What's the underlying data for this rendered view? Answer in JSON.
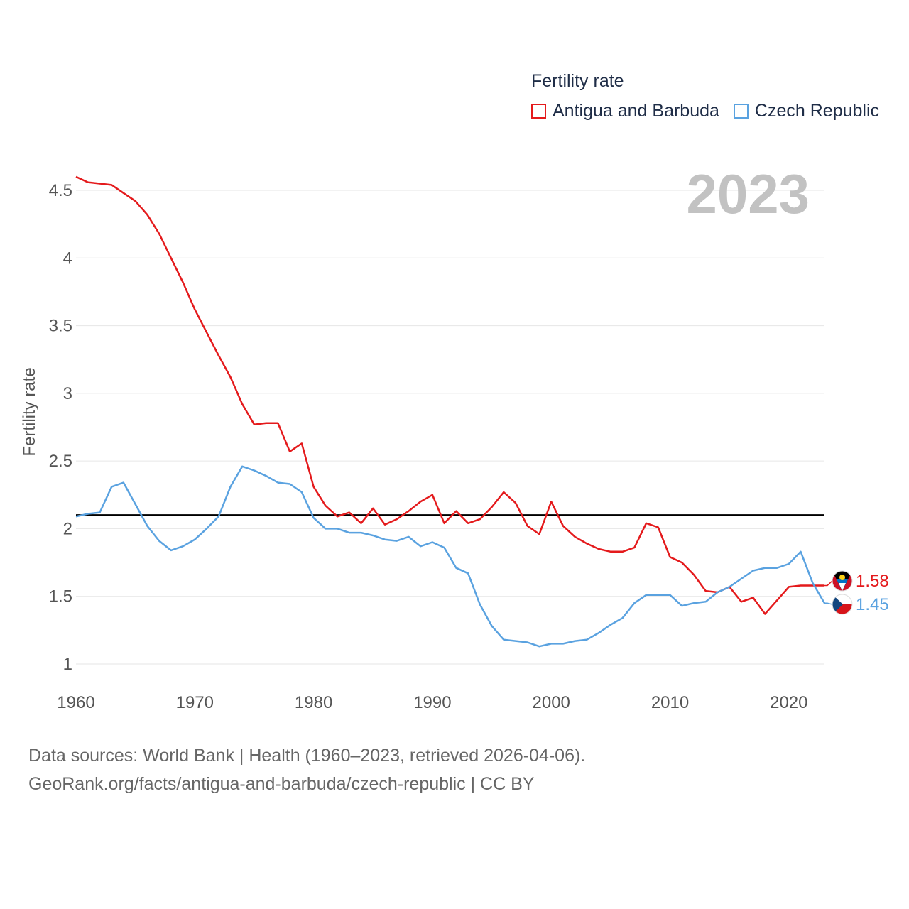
{
  "legend": {
    "title": "Fertility rate",
    "items": [
      {
        "label": "Antigua and Barbuda",
        "color": "#e41a1c"
      },
      {
        "label": "Czech Republic",
        "color": "#5aa2e0"
      }
    ]
  },
  "year_label": "2023",
  "source": {
    "line1": "Data sources: World Bank | Health (1960–2023, retrieved 2026-04-06).",
    "line2": "GeoRank.org/facts/antigua-and-barbuda/czech-republic | CC BY"
  },
  "chart_data": {
    "type": "line",
    "title": "",
    "xlabel": "",
    "ylabel": "Fertility rate",
    "xlim": [
      1960,
      2023
    ],
    "ylim": [
      1,
      4.6
    ],
    "x_ticks": [
      1960,
      1970,
      1980,
      1990,
      2000,
      2010,
      2020
    ],
    "y_ticks": [
      1,
      1.5,
      2,
      2.5,
      3,
      3.5,
      4,
      4.5
    ],
    "y_tick_labels": [
      "1",
      "1.5",
      "2",
      "2.5",
      "3",
      "3.5",
      "4",
      "4.5"
    ],
    "reference_line": {
      "y": 2.1,
      "color": "#000000"
    },
    "grid": true,
    "x": [
      1960,
      1961,
      1962,
      1963,
      1964,
      1965,
      1966,
      1967,
      1968,
      1969,
      1970,
      1971,
      1972,
      1973,
      1974,
      1975,
      1976,
      1977,
      1978,
      1979,
      1980,
      1981,
      1982,
      1983,
      1984,
      1985,
      1986,
      1987,
      1988,
      1989,
      1990,
      1991,
      1992,
      1993,
      1994,
      1995,
      1996,
      1997,
      1998,
      1999,
      2000,
      2001,
      2002,
      2003,
      2004,
      2005,
      2006,
      2007,
      2008,
      2009,
      2010,
      2011,
      2012,
      2013,
      2014,
      2015,
      2016,
      2017,
      2018,
      2019,
      2020,
      2021,
      2022,
      2023
    ],
    "series": [
      {
        "name": "Antigua and Barbuda",
        "color": "#e41a1c",
        "end_label": "1.58",
        "values": [
          4.6,
          4.56,
          4.55,
          4.54,
          4.48,
          4.42,
          4.32,
          4.18,
          4.0,
          3.82,
          3.62,
          3.45,
          3.28,
          3.12,
          2.92,
          2.77,
          2.78,
          2.78,
          2.57,
          2.63,
          2.31,
          2.17,
          2.09,
          2.12,
          2.04,
          2.15,
          2.03,
          2.07,
          2.13,
          2.2,
          2.25,
          2.04,
          2.13,
          2.04,
          2.07,
          2.16,
          2.27,
          2.19,
          2.02,
          1.96,
          2.2,
          2.02,
          1.94,
          1.89,
          1.85,
          1.83,
          1.83,
          1.86,
          2.04,
          2.01,
          1.79,
          1.75,
          1.66,
          1.54,
          1.53,
          1.57,
          1.46,
          1.49,
          1.37,
          1.47,
          1.57,
          1.58,
          1.58,
          1.58
        ]
      },
      {
        "name": "Czech Republic",
        "color": "#5aa2e0",
        "end_label": "1.45",
        "values": [
          2.09,
          2.11,
          2.12,
          2.31,
          2.34,
          2.18,
          2.02,
          1.91,
          1.84,
          1.87,
          1.92,
          2.0,
          2.09,
          2.31,
          2.46,
          2.43,
          2.39,
          2.34,
          2.33,
          2.27,
          2.08,
          2.0,
          2.0,
          1.97,
          1.97,
          1.95,
          1.92,
          1.91,
          1.94,
          1.87,
          1.9,
          1.86,
          1.71,
          1.67,
          1.44,
          1.28,
          1.18,
          1.17,
          1.16,
          1.13,
          1.15,
          1.15,
          1.17,
          1.18,
          1.23,
          1.29,
          1.34,
          1.45,
          1.51,
          1.51,
          1.51,
          1.43,
          1.45,
          1.46,
          1.53,
          1.57,
          1.63,
          1.69,
          1.71,
          1.71,
          1.74,
          1.83,
          1.6,
          1.45
        ]
      }
    ]
  }
}
